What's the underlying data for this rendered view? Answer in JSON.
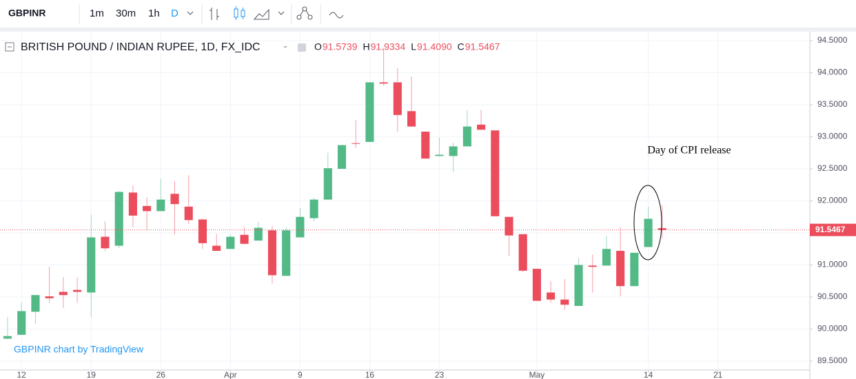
{
  "toolbar": {
    "symbol": "GBPINR",
    "intervals": [
      "1m",
      "30m",
      "1h",
      "D"
    ]
  },
  "chart_data": {
    "type": "candlestick",
    "title": "BRITISH POUND / INDIAN RUPEE, 1D, FX_IDC",
    "legend_values": [
      {
        "name": "O",
        "label": "91.5739"
      },
      {
        "name": "H",
        "label": "91.9334"
      },
      {
        "name": "L",
        "label": "91.4090"
      },
      {
        "name": "C",
        "label": "91.5467"
      }
    ],
    "annotation": "Day of CPI release",
    "watermark": "GBPINR chart by TradingView",
    "up_color": "#53b987",
    "down_color": "#eb4d5c",
    "categories": [
      null,
      null,
      null,
      null,
      null,
      null,
      null,
      null,
      null,
      null,
      null,
      null,
      null,
      null,
      null,
      null,
      null,
      null,
      null,
      null,
      null,
      null,
      null,
      null,
      null,
      null,
      null,
      null,
      null,
      null,
      null,
      null,
      null,
      null,
      null,
      null,
      null,
      null,
      null,
      null,
      null,
      null,
      null,
      null,
      null,
      null,
      null,
      null
    ],
    "open": [
      89.85,
      89.91,
      90.27,
      90.51,
      90.58,
      90.61,
      90.57,
      91.44,
      91.3,
      92.13,
      91.92,
      91.84,
      92.11,
      91.91,
      91.71,
      91.3,
      91.25,
      91.47,
      91.38,
      91.54,
      90.83,
      91.43,
      91.73,
      92.02,
      92.5,
      92.9,
      92.92,
      93.85,
      93.85,
      93.4,
      93.08,
      92.7,
      92.7,
      92.85,
      93.19,
      93.1,
      91.75,
      91.48,
      90.94,
      90.57,
      90.46,
      90.36,
      90.99,
      90.99,
      91.22,
      90.67,
      91.28,
      91.5739
    ],
    "high": [
      90.19,
      90.41,
      90.53,
      90.97,
      90.81,
      90.81,
      91.78,
      91.68,
      92.15,
      92.24,
      92.06,
      92.34,
      92.31,
      92.4,
      91.72,
      91.48,
      91.48,
      91.59,
      91.67,
      91.61,
      91.59,
      91.89,
      92.05,
      92.75,
      92.87,
      93.26,
      93.85,
      94.39,
      94.07,
      93.94,
      93.08,
      92.99,
      92.91,
      93.42,
      93.42,
      93.1,
      91.75,
      91.48,
      90.94,
      90.75,
      90.78,
      91.11,
      91.16,
      91.45,
      91.59,
      91.19,
      91.91,
      91.9334
    ],
    "low": [
      89.84,
      89.91,
      90.08,
      90.41,
      90.33,
      90.41,
      90.19,
      91.22,
      91.26,
      91.59,
      91.54,
      91.84,
      91.48,
      91.64,
      91.25,
      91.22,
      91.25,
      91.32,
      91.38,
      90.71,
      90.83,
      91.43,
      91.68,
      92.02,
      92.5,
      92.83,
      92.92,
      93.8,
      93.08,
      93.16,
      92.66,
      92.7,
      92.45,
      92.85,
      93.11,
      91.76,
      91.14,
      90.89,
      90.44,
      90.41,
      90.3,
      90.36,
      90.57,
      90.99,
      90.51,
      90.67,
      91.28,
      91.409
    ],
    "close": [
      89.89,
      90.28,
      90.53,
      90.48,
      90.53,
      90.58,
      91.43,
      91.26,
      92.14,
      91.77,
      91.84,
      92.02,
      91.95,
      91.7,
      91.34,
      91.22,
      91.44,
      91.33,
      91.58,
      90.84,
      91.54,
      91.75,
      92.02,
      92.51,
      92.87,
      92.89,
      93.85,
      93.83,
      93.34,
      93.16,
      92.66,
      92.72,
      92.85,
      93.16,
      93.11,
      91.76,
      91.46,
      90.91,
      90.44,
      90.46,
      90.38,
      91.0,
      90.97,
      91.25,
      90.67,
      91.19,
      91.72,
      91.5467
    ],
    "last_price": {
      "value": 91.5467,
      "label": "91.5467"
    },
    "xlim": [
      -0.545,
      57.6
    ],
    "xticks": [
      {
        "value": 1,
        "label": "12"
      },
      {
        "value": 6,
        "label": "19"
      },
      {
        "value": 11,
        "label": "26"
      },
      {
        "value": 16,
        "label": "Apr"
      },
      {
        "value": 21,
        "label": "9"
      },
      {
        "value": 26,
        "label": "16"
      },
      {
        "value": 31,
        "label": "23"
      },
      {
        "value": 38,
        "label": "May"
      },
      {
        "value": 46,
        "label": "14"
      },
      {
        "value": 51,
        "label": "21"
      }
    ],
    "ylim": [
      89.36,
      94.64
    ],
    "yticks": [
      {
        "value": 89.5,
        "label": "89.5000"
      },
      {
        "value": 90,
        "label": "90.0000"
      },
      {
        "value": 90.5,
        "label": "90.5000"
      },
      {
        "value": 91,
        "label": "91.0000"
      },
      {
        "value": 91.5,
        "label": "91.5000"
      },
      {
        "value": 92,
        "label": "92.0000"
      },
      {
        "value": 92.5,
        "label": "92.5000"
      },
      {
        "value": 93,
        "label": "93.0000"
      },
      {
        "value": 93.5,
        "label": "93.5000"
      },
      {
        "value": 94,
        "label": "94.0000"
      },
      {
        "value": 94.5,
        "label": "94.5000"
      }
    ],
    "grid": true
  }
}
